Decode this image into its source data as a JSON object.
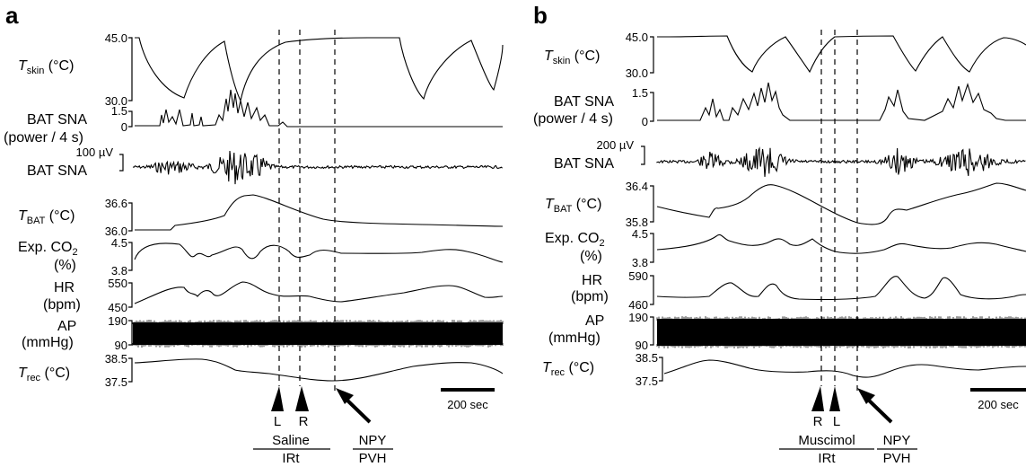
{
  "panels": [
    {
      "letter": "a",
      "rows": [
        {
          "label": "T",
          "label_sub": "skin",
          "label_unit": " (°C)",
          "ticks": [
            "45.0",
            "30.0"
          ]
        },
        {
          "label": "BAT SNA",
          "label2": "(power / 4 s)",
          "ticks": [
            "1.5",
            "0"
          ]
        },
        {
          "label": "BAT SNA",
          "scale_text": "100 µV"
        },
        {
          "label": "T",
          "label_sub": "BAT",
          "label_unit": " (°C)",
          "ticks": [
            "36.6",
            "36.0"
          ]
        },
        {
          "label": "Exp. CO",
          "label_sub": "2",
          "label2": "(%)",
          "ticks": [
            "4.5",
            "3.8"
          ]
        },
        {
          "label": "HR",
          "label2": "(bpm)",
          "ticks": [
            "550",
            "450"
          ]
        },
        {
          "label": "AP",
          "label2": "(mmHg)",
          "ticks": [
            "190",
            "90"
          ]
        },
        {
          "label": "T",
          "label_sub": "rec",
          "label_unit": " (°C)",
          "ticks": [
            "38.5",
            "37.5"
          ]
        }
      ],
      "scale_bar": "200 sec",
      "arrowheads": [
        "L",
        "R"
      ],
      "treatment": "Saline",
      "site": "IRt",
      "drug": "NPY",
      "drug_site": "PVH"
    },
    {
      "letter": "b",
      "rows": [
        {
          "label": "T",
          "label_sub": "skin",
          "label_unit": " (°C)",
          "ticks": [
            "45.0",
            "30.0"
          ]
        },
        {
          "label": "BAT SNA",
          "label2": "(power / 4 s)",
          "ticks": [
            "1.5",
            "0"
          ]
        },
        {
          "label": "BAT SNA",
          "scale_text": "200 µV"
        },
        {
          "label": "T",
          "label_sub": "BAT",
          "label_unit": " (°C)",
          "ticks": [
            "36.4",
            "35.8"
          ]
        },
        {
          "label": "Exp. CO",
          "label_sub": "2",
          "label2": "(%)",
          "ticks": [
            "4.5",
            "3.8"
          ]
        },
        {
          "label": "HR",
          "label2": "(bpm)",
          "ticks": [
            "590",
            "460"
          ]
        },
        {
          "label": "AP",
          "label2": "(mmHg)",
          "ticks": [
            "190",
            "90"
          ]
        },
        {
          "label": "T",
          "label_sub": "rec",
          "label_unit": " (°C)",
          "ticks": [
            "38.5",
            "37.5"
          ]
        }
      ],
      "scale_bar": "200 sec",
      "arrowheads": [
        "R",
        "L"
      ],
      "treatment": "Muscimol",
      "site": "IRt",
      "drug": "NPY",
      "drug_site": "PVH"
    }
  ]
}
